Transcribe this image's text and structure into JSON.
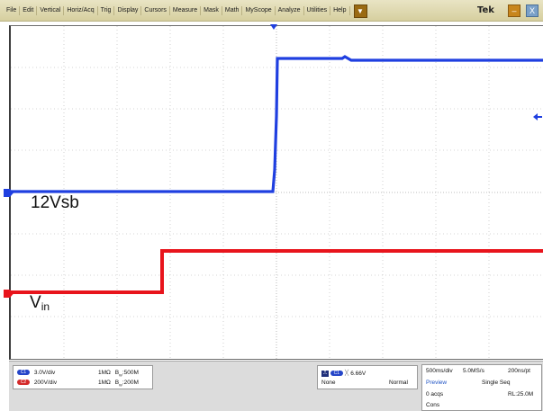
{
  "menubar": {
    "items": [
      "File",
      "Edit",
      "Vertical",
      "Horiz/Acq",
      "Trig",
      "Display",
      "Cursors",
      "Measure",
      "Mask",
      "Math",
      "MyScope",
      "Analyze",
      "Utilities",
      "Help"
    ],
    "dropdown_glyph": "▼",
    "brand": "Tek",
    "minimize_icon": "–",
    "close_icon": "X"
  },
  "waveforms": {
    "ch1_label": "12Vsb",
    "ch2_label_main": "V",
    "ch2_label_sub": "in",
    "ch1_color": "#1f3fe0",
    "ch2_color": "#e8141c"
  },
  "status": {
    "ch1": {
      "badge": "C1",
      "scale": "3.0V/div",
      "coupling": "1MΩ",
      "bw_sym": "B",
      "bw_sub": "W",
      "bw": ":500M"
    },
    "ch2": {
      "badge": "C2",
      "scale": "200V/div",
      "coupling": "1MΩ",
      "bw_sym": "B",
      "bw_sub": "W",
      "bw": ":200M"
    },
    "trigger": {
      "source_badge": "C1",
      "slope_icon": "rising-edge-icon",
      "level": "6.66V",
      "coupling": "None",
      "mode": "Normal"
    },
    "acq": {
      "timebase": "500ms/div",
      "sample_rate": "5.0MS/s",
      "resolution": "200ns/pt",
      "state": "Preview",
      "seq": "Single Seq",
      "acqs": "0 acqs",
      "rl": "RL:25.0M",
      "cons": "Cons"
    }
  }
}
